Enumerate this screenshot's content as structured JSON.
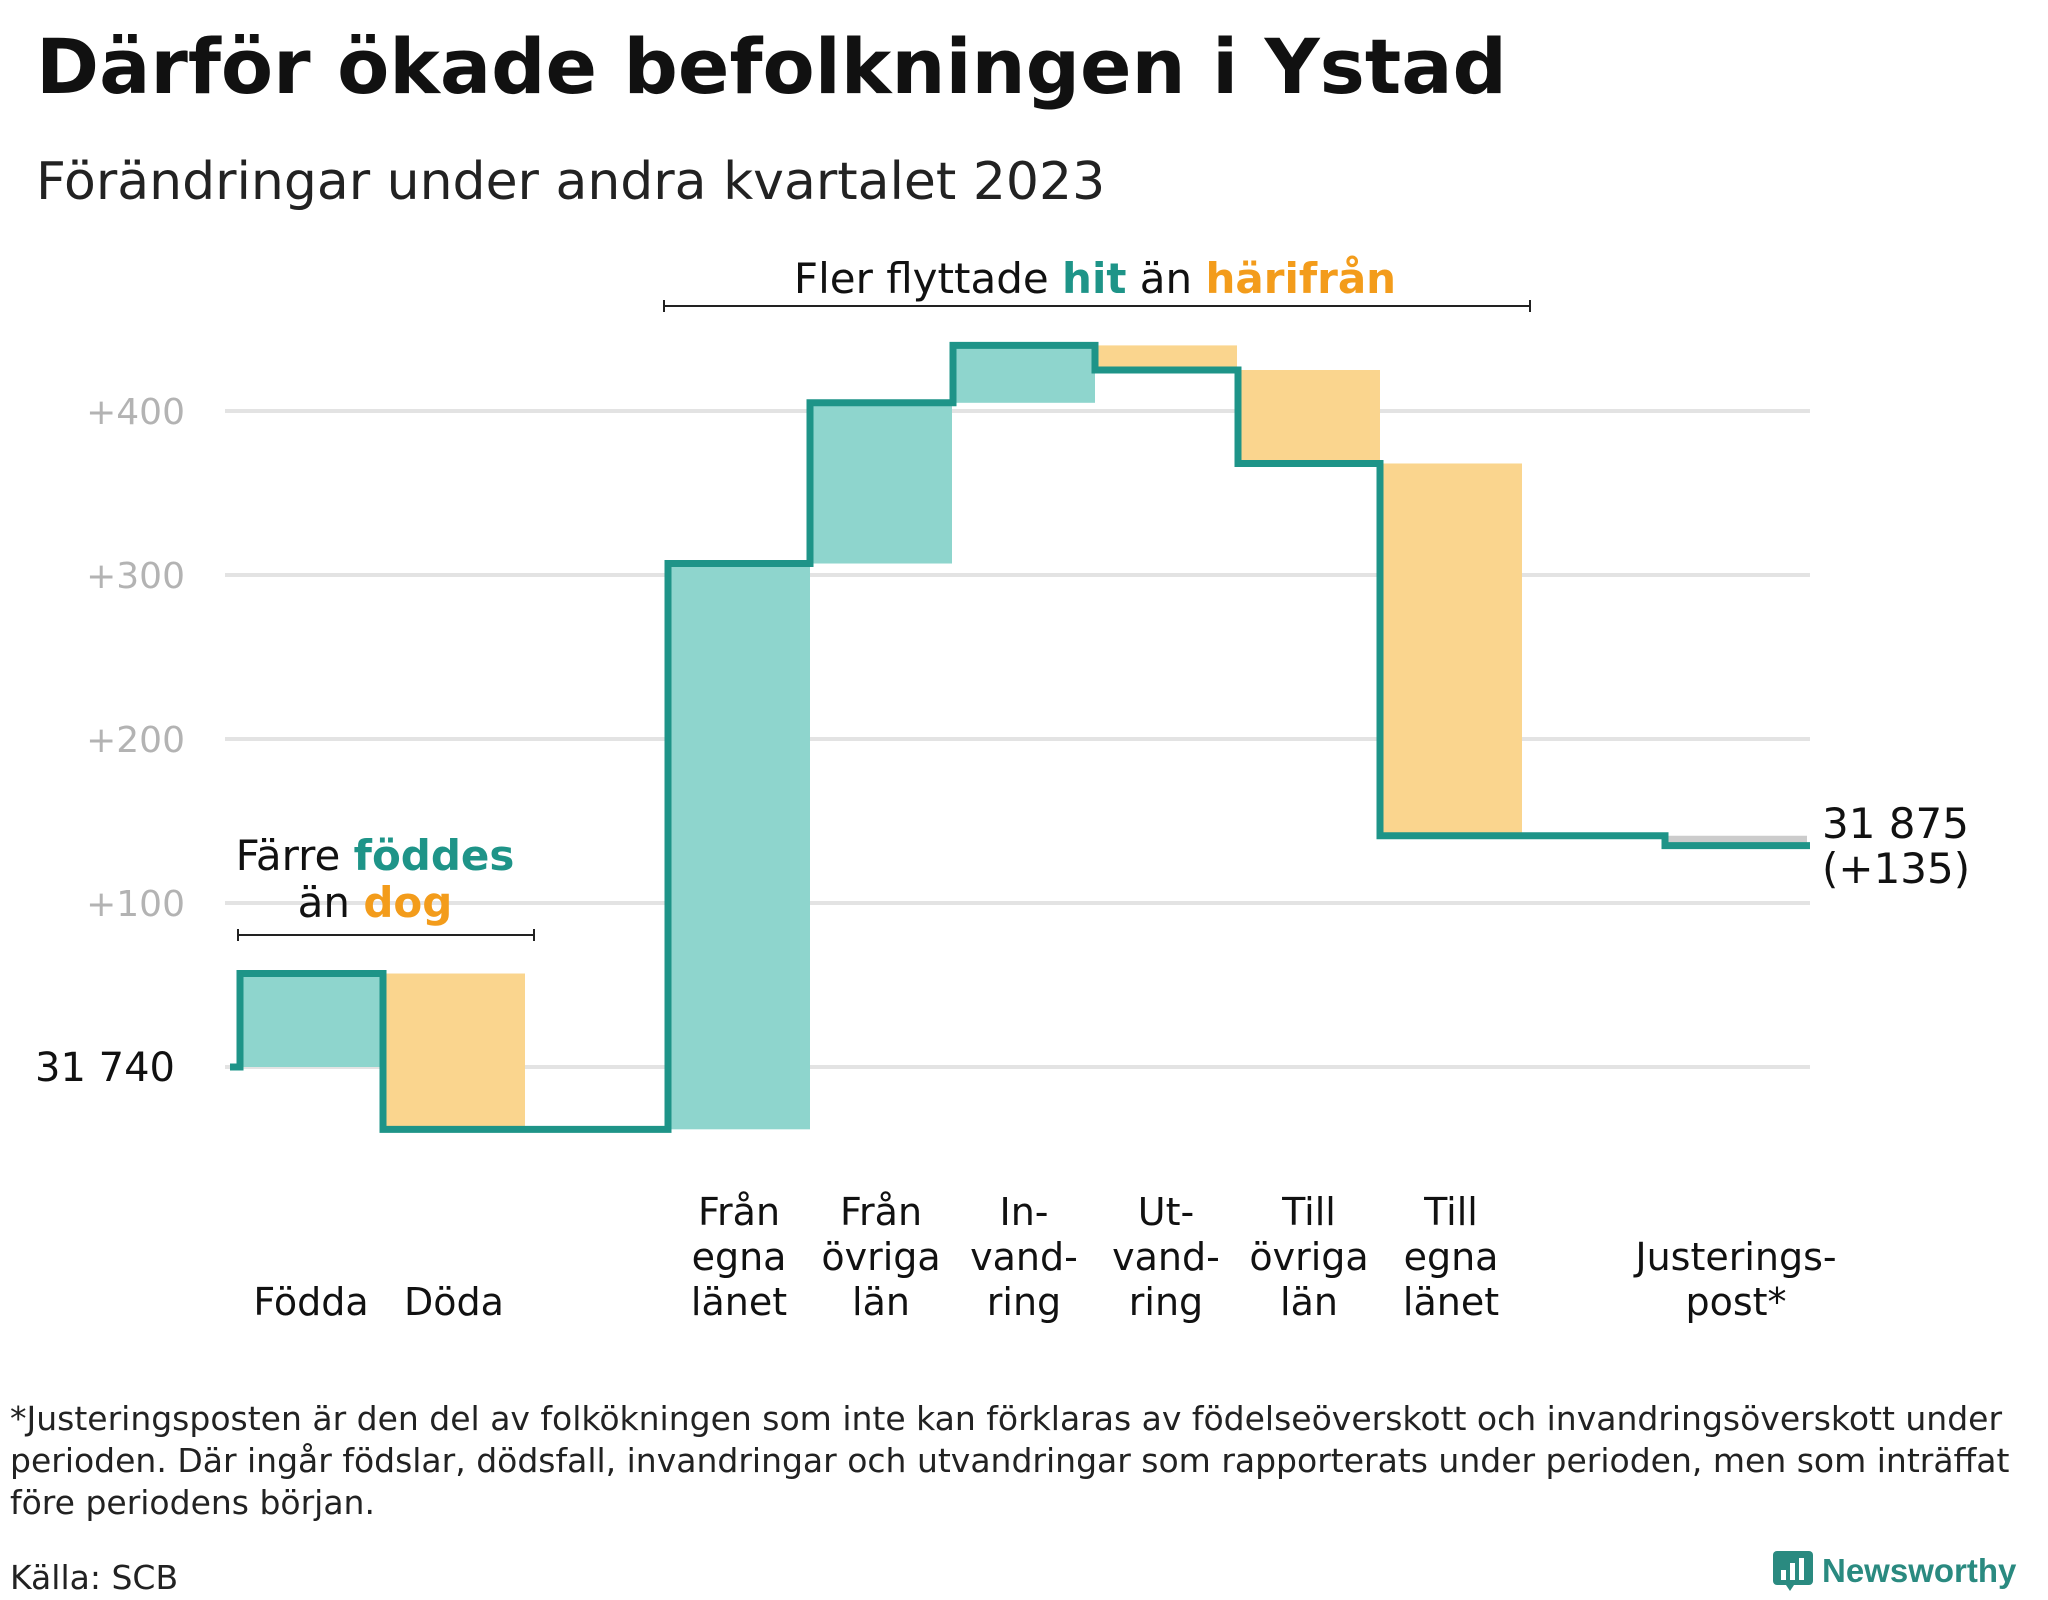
{
  "title": "Därför ökade befolkningen i Ystad",
  "subtitle": "Förändringar under andra kvartalet 2023",
  "footnote": "*Justeringsposten är den del av folkökningen som inte kan förklaras av födelseöverskott och invandringsöverskott under perioden. Där ingår födslar, dödsfall, invandringar och utvandringar som rapporterats under perioden, men som inträffat före periodens början.",
  "source": "Källa: SCB",
  "brand": "Newsworthy",
  "colors": {
    "positive": "#8ed5cd",
    "negative": "#fad58e",
    "line": "#1e9488",
    "adjustment": "#cccccc",
    "hit": "#1e9488",
    "harifran": "#f39c1b",
    "grid": "#e3e3e3",
    "tick": "#b3b3b3"
  },
  "chart_data": {
    "type": "waterfall",
    "start_label": "31 740",
    "end_label": [
      "31 875",
      "(+135)"
    ],
    "y_ticks": [
      "+100",
      "+200",
      "+300",
      "+400"
    ],
    "y_tick_values": [
      100,
      200,
      300,
      400
    ],
    "ylim": [
      -80,
      450
    ],
    "grid": true,
    "steps": [
      {
        "label": [
          "Födda"
        ],
        "delta": 57,
        "kind": "positive"
      },
      {
        "label": [
          "Döda"
        ],
        "delta": -95,
        "kind": "negative"
      },
      {
        "label": [
          "Från",
          "egna",
          "länet"
        ],
        "delta": 345,
        "kind": "positive"
      },
      {
        "label": [
          "Från",
          "övriga",
          "län"
        ],
        "delta": 98,
        "kind": "positive"
      },
      {
        "label": [
          "In-",
          "vand-",
          "ring"
        ],
        "delta": 35,
        "kind": "positive"
      },
      {
        "label": [
          "Ut-",
          "vand-",
          "ring"
        ],
        "delta": -15,
        "kind": "negative"
      },
      {
        "label": [
          "Till",
          "övriga",
          "län"
        ],
        "delta": -57,
        "kind": "negative"
      },
      {
        "label": [
          "Till",
          "egna",
          "länet"
        ],
        "delta": -227,
        "kind": "negative"
      },
      {
        "label": [
          "Justerings-",
          "post*"
        ],
        "delta": -6,
        "kind": "adjustment"
      }
    ],
    "annotations": [
      {
        "parts": [
          {
            "text": "Färre ",
            "color": "text"
          },
          {
            "text": "föddes",
            "color": "hit"
          }
        ],
        "parts2": [
          {
            "text": "än ",
            "color": "text"
          },
          {
            "text": "dog",
            "color": "harifran"
          }
        ]
      },
      {
        "parts": [
          {
            "text": "Fler flyttade ",
            "color": "text"
          },
          {
            "text": "hit",
            "color": "hit"
          },
          {
            "text": " än ",
            "color": "text"
          },
          {
            "text": "härifrån",
            "color": "harifran"
          }
        ]
      }
    ]
  }
}
